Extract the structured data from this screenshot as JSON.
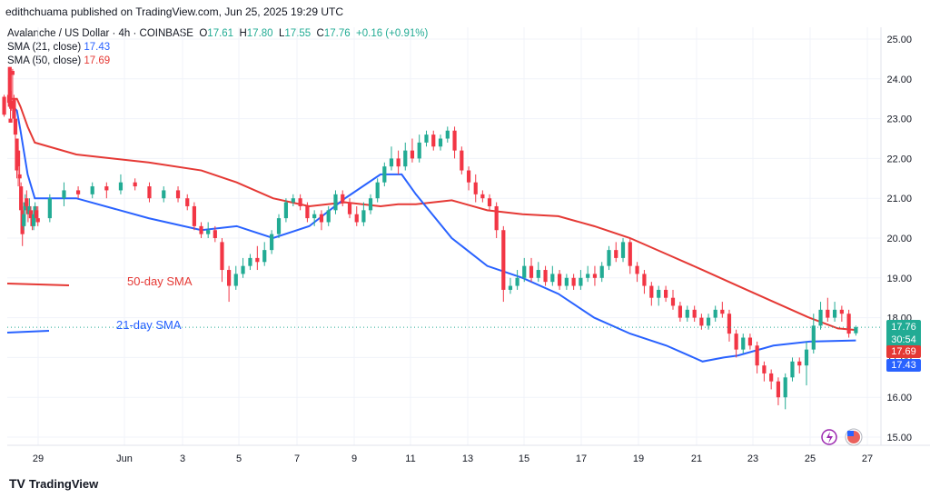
{
  "header": {
    "publisher": "edithchuama published on TradingView.com, Jun 25, 2025 19:29 UTC"
  },
  "legend": {
    "symbol": "Avalanche / US Dollar · 4h · COINBASE",
    "o_label": "O",
    "o": "17.61",
    "h_label": "H",
    "h": "17.80",
    "l_label": "L",
    "l": "17.55",
    "c_label": "C",
    "c": "17.76",
    "chg": "+0.16 (+0.91%)",
    "sma21_label": "SMA (21, close)",
    "sma21_value": "17.43",
    "sma50_label": "SMA (50, close)",
    "sma50_value": "17.69"
  },
  "annotations": {
    "sma50": "50-day SMA",
    "sma21": "21-day SMA"
  },
  "badges": {
    "price": "17.76",
    "countdown": "30:54",
    "sma50": "17.69",
    "sma21": "17.43"
  },
  "brand": {
    "name": "TradingView",
    "logo": "TV"
  },
  "colors": {
    "up": "#22ab94",
    "down": "#f23645",
    "sma21": "#2962ff",
    "sma50": "#e53935"
  },
  "chart_data": {
    "type": "candlestick",
    "ylim": [
      15.0,
      25.0
    ],
    "y_ticks": [
      "25.00",
      "24.00",
      "23.00",
      "22.00",
      "21.00",
      "20.00",
      "19.00",
      "18.00",
      "17.00",
      "16.00",
      "15.00"
    ],
    "x_ticks": [
      "29",
      "Jun",
      "3",
      "5",
      "7",
      "9",
      "11",
      "13",
      "15",
      "17",
      "19",
      "21",
      "23",
      "25",
      "27"
    ],
    "sma50": [
      [
        23.4,
        23.5
      ],
      [
        24.5,
        23.5
      ],
      [
        25.0,
        23.3
      ],
      [
        26.0,
        22.8
      ],
      [
        27.0,
        22.4
      ],
      [
        28.0,
        22.1
      ],
      [
        29.0,
        21.9
      ],
      [
        30.0,
        21.7
      ],
      [
        31.0,
        21.4
      ],
      [
        32.0,
        21.0
      ],
      [
        33.0,
        20.8
      ],
      [
        34.0,
        20.9
      ],
      [
        35.0,
        20.8
      ],
      [
        35.5,
        20.85
      ],
      [
        36.0,
        20.85
      ],
      [
        37.0,
        20.95
      ],
      [
        38.0,
        20.7
      ],
      [
        39.0,
        20.6
      ],
      [
        40.0,
        20.55
      ],
      [
        41.0,
        20.3
      ],
      [
        42.0,
        20.0
      ],
      [
        43.0,
        19.6
      ],
      [
        44.0,
        19.2
      ],
      [
        45.0,
        18.8
      ],
      [
        46.0,
        18.4
      ],
      [
        47.0,
        18.0
      ],
      [
        47.8,
        17.73
      ],
      [
        48.3,
        17.69
      ]
    ],
    "sma21": [
      [
        23.4,
        23.4
      ],
      [
        24.0,
        23.3
      ],
      [
        24.5,
        23.2
      ],
      [
        25.0,
        22.7
      ],
      [
        26.0,
        21.6
      ],
      [
        27.0,
        21.0
      ],
      [
        28.0,
        21.0
      ],
      [
        29.0,
        20.5
      ],
      [
        30.0,
        20.2
      ],
      [
        31.0,
        20.3
      ],
      [
        32.0,
        20.0
      ],
      [
        33.0,
        20.3
      ],
      [
        34.0,
        21.0
      ],
      [
        35.0,
        21.6
      ],
      [
        35.6,
        21.6
      ],
      [
        36.0,
        21.1
      ],
      [
        37.0,
        20.0
      ],
      [
        38.0,
        19.3
      ],
      [
        39.0,
        19.0
      ],
      [
        40.0,
        18.6
      ],
      [
        41.0,
        18.0
      ],
      [
        42.0,
        17.6
      ],
      [
        43.0,
        17.3
      ],
      [
        44.0,
        16.9
      ],
      [
        44.6,
        17.0
      ],
      [
        45.0,
        17.05
      ],
      [
        46.0,
        17.3
      ],
      [
        47.0,
        17.4
      ],
      [
        48.3,
        17.43
      ]
    ],
    "candles": [
      [
        23.45,
        23.6,
        23.4,
        23.65,
        23.3
      ],
      [
        23.6,
        23.45,
        23.25,
        23.7,
        23.2
      ],
      [
        23.5,
        23.6,
        23.3,
        23.65,
        23.25
      ],
      [
        23.55,
        23.0,
        22.9,
        23.6,
        22.9
      ],
      [
        23.1,
        23.55,
        23.1,
        23.6,
        23.05
      ],
      [
        23.5,
        24.3,
        23.6,
        24.3,
        23.4
      ],
      [
        23.7,
        24.2,
        24.1,
        24.25,
        23.5
      ],
      [
        23.8,
        23.5,
        23.0,
        23.6,
        22.9
      ],
      [
        23.9,
        23.0,
        22.6,
        23.3,
        22.4
      ],
      [
        24.0,
        22.5,
        21.7,
        22.5,
        21.5
      ],
      [
        24.1,
        22.2,
        21.8,
        22.3,
        21.3
      ],
      [
        24.2,
        21.6,
        21.5,
        21.8,
        21.3
      ],
      [
        24.3,
        21.3,
        20.7,
        21.4,
        20.1
      ],
      [
        24.4,
        20.7,
        20.1,
        20.8,
        19.8
      ],
      [
        24.5,
        20.3,
        20.6,
        20.8,
        20.2
      ],
      [
        24.6,
        20.7,
        20.9,
        21.1,
        20.4
      ],
      [
        24.7,
        21.0,
        20.8,
        21.2,
        20.7
      ],
      [
        24.8,
        20.8,
        20.6,
        20.9,
        20.4
      ],
      [
        24.9,
        20.6,
        20.8,
        21.0,
        20.5
      ],
      [
        25.0,
        20.7,
        20.5,
        20.8,
        20.3
      ],
      [
        25.1,
        20.5,
        20.3,
        20.6,
        20.2
      ],
      [
        25.2,
        20.3,
        20.6,
        20.7,
        20.2
      ],
      [
        25.3,
        20.5,
        20.8,
        20.9,
        20.4
      ],
      [
        25.4,
        20.7,
        20.5,
        20.8,
        20.4
      ],
      [
        25.5,
        20.5,
        20.4,
        20.8,
        20.3
      ],
      [
        25.6,
        20.5,
        21.0,
        21.1,
        20.4
      ],
      [
        25.7,
        21.0,
        21.2,
        21.4,
        20.8
      ],
      [
        25.8,
        21.2,
        21.1,
        21.3,
        21.0
      ],
      [
        25.9,
        21.1,
        21.3,
        21.4,
        21.0
      ],
      [
        26.0,
        21.3,
        21.2,
        21.4,
        21.0
      ],
      [
        26.1,
        21.2,
        21.4,
        21.6,
        21.1
      ],
      [
        26.2,
        21.4,
        21.3,
        21.5,
        21.2
      ],
      [
        26.3,
        21.3,
        21.0,
        21.4,
        20.9
      ],
      [
        26.4,
        21.0,
        21.2,
        21.3,
        20.9
      ],
      [
        26.5,
        21.2,
        21.0,
        21.3,
        20.9
      ],
      [
        26.6,
        21.0,
        20.8,
        21.1,
        20.7
      ],
      [
        26.7,
        20.8,
        20.3,
        20.9,
        20.2
      ],
      [
        26.8,
        20.3,
        20.1,
        20.4,
        20.0
      ],
      [
        26.9,
        20.1,
        20.2,
        20.4,
        20.0
      ],
      [
        27.0,
        20.2,
        20.0,
        20.3,
        19.9
      ],
      [
        27.1,
        19.9,
        19.2,
        20.0,
        18.9
      ],
      [
        27.2,
        19.2,
        18.8,
        19.3,
        18.4
      ],
      [
        27.3,
        18.8,
        19.1,
        19.3,
        18.7
      ],
      [
        27.4,
        19.1,
        19.3,
        19.5,
        19.0
      ],
      [
        27.5,
        19.3,
        19.5,
        19.6,
        19.2
      ],
      [
        27.6,
        19.5,
        19.4,
        19.8,
        19.2
      ],
      [
        27.7,
        19.4,
        19.7,
        19.9,
        19.3
      ],
      [
        27.8,
        19.7,
        20.1,
        20.2,
        19.6
      ],
      [
        27.9,
        20.1,
        20.5,
        20.6,
        20.0
      ],
      [
        28.0,
        20.5,
        20.9,
        21.0,
        20.4
      ],
      [
        28.1,
        20.9,
        21.0,
        21.1,
        20.8
      ],
      [
        28.2,
        21.0,
        20.8,
        21.1,
        20.7
      ],
      [
        28.3,
        20.8,
        20.5,
        20.9,
        20.4
      ],
      [
        28.4,
        20.5,
        20.6,
        20.7,
        20.3
      ],
      [
        28.5,
        20.6,
        20.4,
        20.7,
        20.2
      ],
      [
        28.6,
        20.4,
        20.7,
        20.8,
        20.3
      ],
      [
        28.7,
        20.7,
        21.1,
        21.2,
        20.6
      ],
      [
        28.8,
        21.1,
        20.9,
        21.2,
        20.8
      ],
      [
        28.9,
        20.9,
        20.6,
        21.0,
        20.5
      ],
      [
        29.0,
        20.6,
        20.4,
        20.8,
        20.3
      ],
      [
        29.1,
        20.4,
        20.7,
        20.9,
        20.3
      ],
      [
        29.2,
        20.7,
        21.0,
        21.1,
        20.6
      ],
      [
        29.3,
        21.0,
        21.4,
        21.5,
        20.9
      ],
      [
        29.4,
        21.4,
        21.8,
        21.9,
        21.3
      ],
      [
        29.5,
        21.8,
        22.0,
        22.3,
        21.7
      ],
      [
        29.6,
        22.0,
        21.8,
        22.2,
        21.6
      ],
      [
        29.7,
        21.8,
        22.2,
        22.4,
        21.7
      ],
      [
        29.8,
        22.2,
        22.0,
        22.5,
        21.9
      ],
      [
        29.9,
        22.0,
        22.4,
        22.6,
        21.9
      ],
      [
        30.0,
        22.4,
        22.6,
        22.7,
        22.3
      ],
      [
        30.1,
        22.6,
        22.3,
        22.7,
        22.2
      ],
      [
        30.2,
        22.3,
        22.5,
        22.6,
        22.2
      ],
      [
        30.3,
        22.5,
        22.7,
        22.8,
        22.4
      ],
      [
        30.4,
        22.7,
        22.2,
        22.8,
        22.0
      ],
      [
        30.5,
        22.2,
        21.7,
        22.3,
        21.6
      ],
      [
        30.6,
        21.7,
        21.4,
        21.8,
        21.2
      ],
      [
        30.7,
        21.4,
        21.1,
        21.6,
        20.9
      ],
      [
        30.8,
        21.1,
        21.0,
        21.2,
        20.9
      ],
      [
        30.9,
        21.0,
        20.8,
        21.1,
        20.7
      ],
      [
        31.0,
        20.8,
        20.2,
        20.9,
        20.0
      ],
      [
        31.1,
        20.2,
        18.7,
        20.3,
        18.4
      ],
      [
        31.2,
        18.7,
        18.8,
        19.0,
        18.6
      ],
      [
        31.3,
        18.8,
        19.0,
        19.2,
        18.7
      ],
      [
        31.4,
        19.0,
        19.3,
        19.5,
        18.9
      ],
      [
        31.5,
        19.3,
        19.0,
        19.5,
        18.9
      ],
      [
        31.6,
        19.0,
        19.2,
        19.4,
        18.9
      ],
      [
        31.7,
        19.2,
        18.9,
        19.3,
        18.8
      ],
      [
        31.8,
        18.9,
        19.1,
        19.3,
        18.8
      ],
      [
        31.9,
        19.1,
        18.8,
        19.2,
        18.7
      ],
      [
        32.0,
        18.8,
        19.0,
        19.1,
        18.7
      ],
      [
        32.1,
        19.0,
        18.8,
        19.1,
        18.7
      ],
      [
        32.2,
        18.8,
        19.0,
        19.2,
        18.7
      ],
      [
        32.3,
        19.0,
        19.1,
        19.3,
        18.9
      ],
      [
        32.4,
        19.1,
        19.0,
        19.3,
        18.8
      ],
      [
        32.5,
        19.0,
        19.3,
        19.4,
        18.9
      ],
      [
        32.6,
        19.3,
        19.7,
        19.8,
        19.2
      ],
      [
        32.7,
        19.7,
        19.5,
        19.9,
        19.4
      ],
      [
        32.8,
        19.5,
        19.9,
        20.0,
        19.4
      ],
      [
        32.9,
        19.9,
        19.3,
        20.0,
        19.1
      ],
      [
        33.0,
        19.3,
        19.1,
        19.4,
        18.9
      ],
      [
        33.1,
        19.1,
        18.8,
        19.2,
        18.6
      ],
      [
        33.2,
        18.8,
        18.5,
        18.9,
        18.3
      ],
      [
        33.3,
        18.5,
        18.7,
        18.8,
        18.3
      ],
      [
        33.4,
        18.7,
        18.5,
        18.8,
        18.4
      ],
      [
        33.5,
        18.5,
        18.3,
        18.7,
        18.2
      ],
      [
        33.6,
        18.3,
        18.0,
        18.4,
        17.9
      ],
      [
        33.7,
        18.0,
        18.2,
        18.3,
        17.9
      ],
      [
        33.8,
        18.2,
        18.0,
        18.3,
        17.9
      ],
      [
        33.9,
        18.0,
        17.8,
        18.1,
        17.7
      ],
      [
        34.0,
        17.8,
        18.0,
        18.1,
        17.7
      ],
      [
        34.1,
        18.0,
        18.2,
        18.3,
        17.9
      ],
      [
        34.2,
        18.2,
        18.1,
        18.4,
        18.0
      ],
      [
        34.3,
        18.1,
        17.6,
        18.2,
        17.4
      ],
      [
        34.4,
        17.6,
        17.2,
        17.7,
        17.0
      ],
      [
        34.5,
        17.2,
        17.5,
        17.6,
        17.1
      ],
      [
        34.6,
        17.5,
        17.3,
        17.6,
        17.2
      ],
      [
        34.7,
        17.3,
        16.8,
        17.4,
        16.6
      ],
      [
        34.8,
        16.8,
        16.6,
        16.9,
        16.4
      ],
      [
        34.9,
        16.6,
        16.4,
        16.7,
        16.2
      ],
      [
        35.0,
        16.4,
        16.0,
        16.5,
        15.8
      ],
      [
        35.1,
        16.0,
        16.5,
        16.6,
        15.7
      ],
      [
        35.2,
        16.5,
        16.9,
        17.0,
        16.4
      ],
      [
        35.3,
        16.9,
        16.8,
        17.0,
        16.6
      ],
      [
        35.4,
        16.8,
        17.2,
        17.4,
        16.3
      ],
      [
        35.5,
        17.2,
        17.8,
        18.1,
        17.1
      ],
      [
        35.6,
        17.8,
        18.2,
        18.4,
        17.7
      ],
      [
        35.7,
        18.2,
        18.0,
        18.5,
        17.9
      ],
      [
        35.8,
        18.0,
        18.2,
        18.4,
        17.9
      ],
      [
        35.9,
        18.2,
        18.1,
        18.3,
        17.9
      ],
      [
        36.0,
        18.1,
        17.6,
        18.2,
        17.5
      ],
      [
        36.1,
        17.61,
        17.76,
        17.8,
        17.55
      ]
    ]
  }
}
